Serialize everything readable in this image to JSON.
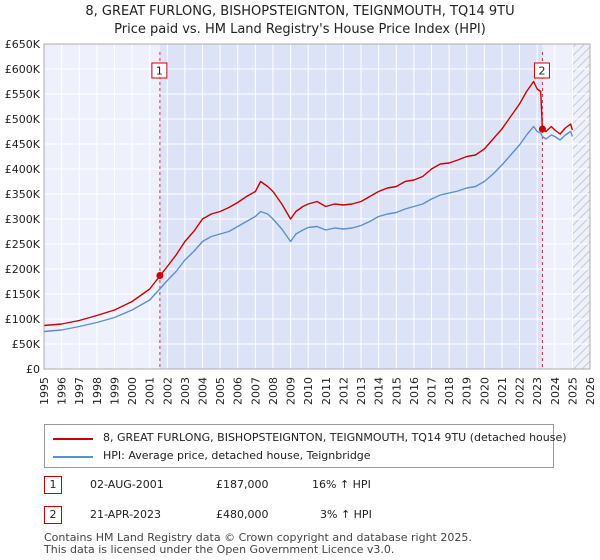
{
  "chart_data": {
    "type": "line",
    "title": "8, GREAT FURLONG, BISHOPSTEIGNTON, TEIGNMOUTH, TQ14 9TU",
    "subtitle": "Price paid vs. HM Land Registry's House Price Index (HPI)",
    "xlabel": "",
    "ylabel": "",
    "xlim": [
      1995,
      2026
    ],
    "ylim": [
      0,
      650000
    ],
    "x_ticks": [
      "1995",
      "1996",
      "1997",
      "1998",
      "1999",
      "2000",
      "2001",
      "2002",
      "2003",
      "2004",
      "2005",
      "2006",
      "2007",
      "2008",
      "2009",
      "2010",
      "2011",
      "2012",
      "2013",
      "2014",
      "2015",
      "2016",
      "2017",
      "2018",
      "2019",
      "2020",
      "2021",
      "2022",
      "2023",
      "2024",
      "2025",
      "2026"
    ],
    "y_ticks": [
      {
        "value": 0,
        "label": "£0"
      },
      {
        "value": 50000,
        "label": "£50K"
      },
      {
        "value": 100000,
        "label": "£100K"
      },
      {
        "value": 150000,
        "label": "£150K"
      },
      {
        "value": 200000,
        "label": "£200K"
      },
      {
        "value": 250000,
        "label": "£250K"
      },
      {
        "value": 300000,
        "label": "£300K"
      },
      {
        "value": 350000,
        "label": "£350K"
      },
      {
        "value": 400000,
        "label": "£400K"
      },
      {
        "value": 450000,
        "label": "£450K"
      },
      {
        "value": 500000,
        "label": "£500K"
      },
      {
        "value": 550000,
        "label": "£550K"
      },
      {
        "value": 600000,
        "label": "£600K"
      },
      {
        "value": 650000,
        "label": "£650K"
      }
    ],
    "series": [
      {
        "name": "8, GREAT FURLONG, BISHOPSTEIGNTON, TEIGNMOUTH, TQ14 9TU (detached house)",
        "color": "#cc0000",
        "x": [
          1995.0,
          1996.0,
          1997.0,
          1998.0,
          1999.0,
          2000.0,
          2001.0,
          2001.6,
          2002.0,
          2002.5,
          2003.0,
          2003.5,
          2004.0,
          2004.5,
          2005.0,
          2005.5,
          2006.0,
          2006.5,
          2007.0,
          2007.3,
          2007.7,
          2008.0,
          2008.5,
          2009.0,
          2009.3,
          2009.7,
          2010.0,
          2010.5,
          2011.0,
          2011.5,
          2012.0,
          2012.5,
          2013.0,
          2013.5,
          2014.0,
          2014.5,
          2015.0,
          2015.5,
          2016.0,
          2016.5,
          2017.0,
          2017.5,
          2018.0,
          2018.5,
          2019.0,
          2019.5,
          2020.0,
          2020.5,
          2021.0,
          2021.5,
          2022.0,
          2022.4,
          2022.8,
          2023.0,
          2023.2,
          2023.3,
          2023.5,
          2023.8,
          2024.0,
          2024.3,
          2024.6,
          2024.9,
          2025.0
        ],
        "values": [
          87000,
          90000,
          97000,
          107000,
          118000,
          135000,
          160000,
          187000,
          205000,
          228000,
          255000,
          275000,
          300000,
          310000,
          315000,
          323000,
          333000,
          345000,
          355000,
          375000,
          365000,
          355000,
          330000,
          300000,
          315000,
          325000,
          330000,
          335000,
          325000,
          330000,
          328000,
          330000,
          335000,
          345000,
          355000,
          362000,
          365000,
          375000,
          378000,
          385000,
          400000,
          410000,
          412000,
          418000,
          425000,
          428000,
          440000,
          460000,
          480000,
          505000,
          530000,
          555000,
          575000,
          560000,
          555000,
          480000,
          475000,
          485000,
          478000,
          470000,
          482000,
          490000,
          478000
        ]
      },
      {
        "name": "HPI: Average price, detached house, Teignbridge",
        "color": "#5b8fcf",
        "x": [
          1995.0,
          1996.0,
          1997.0,
          1998.0,
          1999.0,
          2000.0,
          2001.0,
          2001.6,
          2002.0,
          2002.5,
          2003.0,
          2003.5,
          2004.0,
          2004.5,
          2005.0,
          2005.5,
          2006.0,
          2006.5,
          2007.0,
          2007.3,
          2007.7,
          2008.0,
          2008.5,
          2009.0,
          2009.3,
          2009.7,
          2010.0,
          2010.5,
          2011.0,
          2011.5,
          2012.0,
          2012.5,
          2013.0,
          2013.5,
          2014.0,
          2014.5,
          2015.0,
          2015.5,
          2016.0,
          2016.5,
          2017.0,
          2017.5,
          2018.0,
          2018.5,
          2019.0,
          2019.5,
          2020.0,
          2020.5,
          2021.0,
          2021.5,
          2022.0,
          2022.4,
          2022.8,
          2023.0,
          2023.2,
          2023.3,
          2023.5,
          2023.8,
          2024.0,
          2024.3,
          2024.6,
          2024.9,
          2025.0
        ],
        "values": [
          75000,
          78000,
          85000,
          93000,
          103000,
          118000,
          138000,
          161000,
          177000,
          195000,
          218000,
          235000,
          255000,
          265000,
          270000,
          275000,
          285000,
          295000,
          305000,
          315000,
          310000,
          300000,
          280000,
          255000,
          270000,
          278000,
          283000,
          285000,
          278000,
          282000,
          280000,
          282000,
          287000,
          295000,
          305000,
          310000,
          313000,
          320000,
          325000,
          330000,
          340000,
          348000,
          352000,
          356000,
          362000,
          365000,
          375000,
          390000,
          408000,
          428000,
          448000,
          468000,
          485000,
          475000,
          472000,
          465000,
          460000,
          468000,
          465000,
          458000,
          468000,
          475000,
          465000
        ]
      }
    ],
    "annotations": [
      {
        "label": "1",
        "x": 2001.58,
        "value": 187000
      },
      {
        "label": "2",
        "x": 2023.3,
        "value": 480000
      }
    ]
  },
  "legend": {
    "line1": "8, GREAT FURLONG, BISHOPSTEIGNTON, TEIGNMOUTH, TQ14 9TU (detached house)",
    "line2": "HPI: Average price, detached house, Teignbridge"
  },
  "transactions": [
    {
      "num": "1",
      "date": "02-AUG-2001",
      "price": "£187,000",
      "hpi": "16% ↑ HPI"
    },
    {
      "num": "2",
      "date": "21-APR-2023",
      "price": "£480,000",
      "hpi": "3% ↑ HPI"
    }
  ],
  "footer": {
    "line1": "Contains HM Land Registry data © Crown copyright and database right 2025.",
    "line2": "This data is licensed under the Open Government Licence v3.0."
  }
}
